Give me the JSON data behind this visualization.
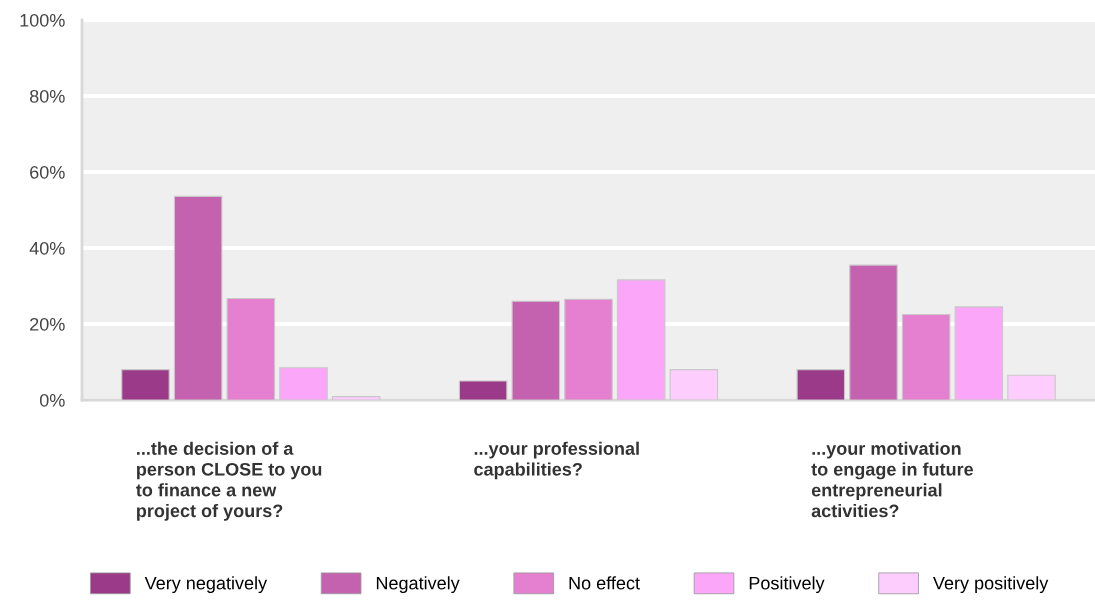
{
  "chart_data": {
    "type": "bar",
    "categories": [
      "...the decision of a\nperson CLOSE to you\nto finance a new\nproject of yours?",
      "...your professional\ncapabilities?",
      "...your motivation\nto engage in future\nentrepreneurial\nactivities?"
    ],
    "series": [
      {
        "name": "Very negatively",
        "color": "#9b3a88",
        "values": [
          8.0,
          5.0,
          8.0
        ]
      },
      {
        "name": "Negatively",
        "color": "#c462b0",
        "values": [
          53.6,
          26.0,
          35.5
        ]
      },
      {
        "name": "No effect",
        "color": "#e580d0",
        "values": [
          26.7,
          26.5,
          22.5
        ]
      },
      {
        "name": "Positively",
        "color": "#fba6f8",
        "values": [
          8.5,
          31.6,
          24.5
        ]
      },
      {
        "name": "Very positively",
        "color": "#fdcdfd",
        "values": [
          0.9,
          8.0,
          6.5
        ]
      }
    ],
    "ylim": [
      0,
      100
    ],
    "yticks": [
      {
        "value": 0,
        "label": "0%"
      },
      {
        "value": 20,
        "label": "20%"
      },
      {
        "value": 40,
        "label": "40%"
      },
      {
        "value": 60,
        "label": "60%"
      },
      {
        "value": 80,
        "label": "80%"
      },
      {
        "value": 100,
        "label": "100%"
      }
    ],
    "grid": "y",
    "legend": "bottom"
  }
}
